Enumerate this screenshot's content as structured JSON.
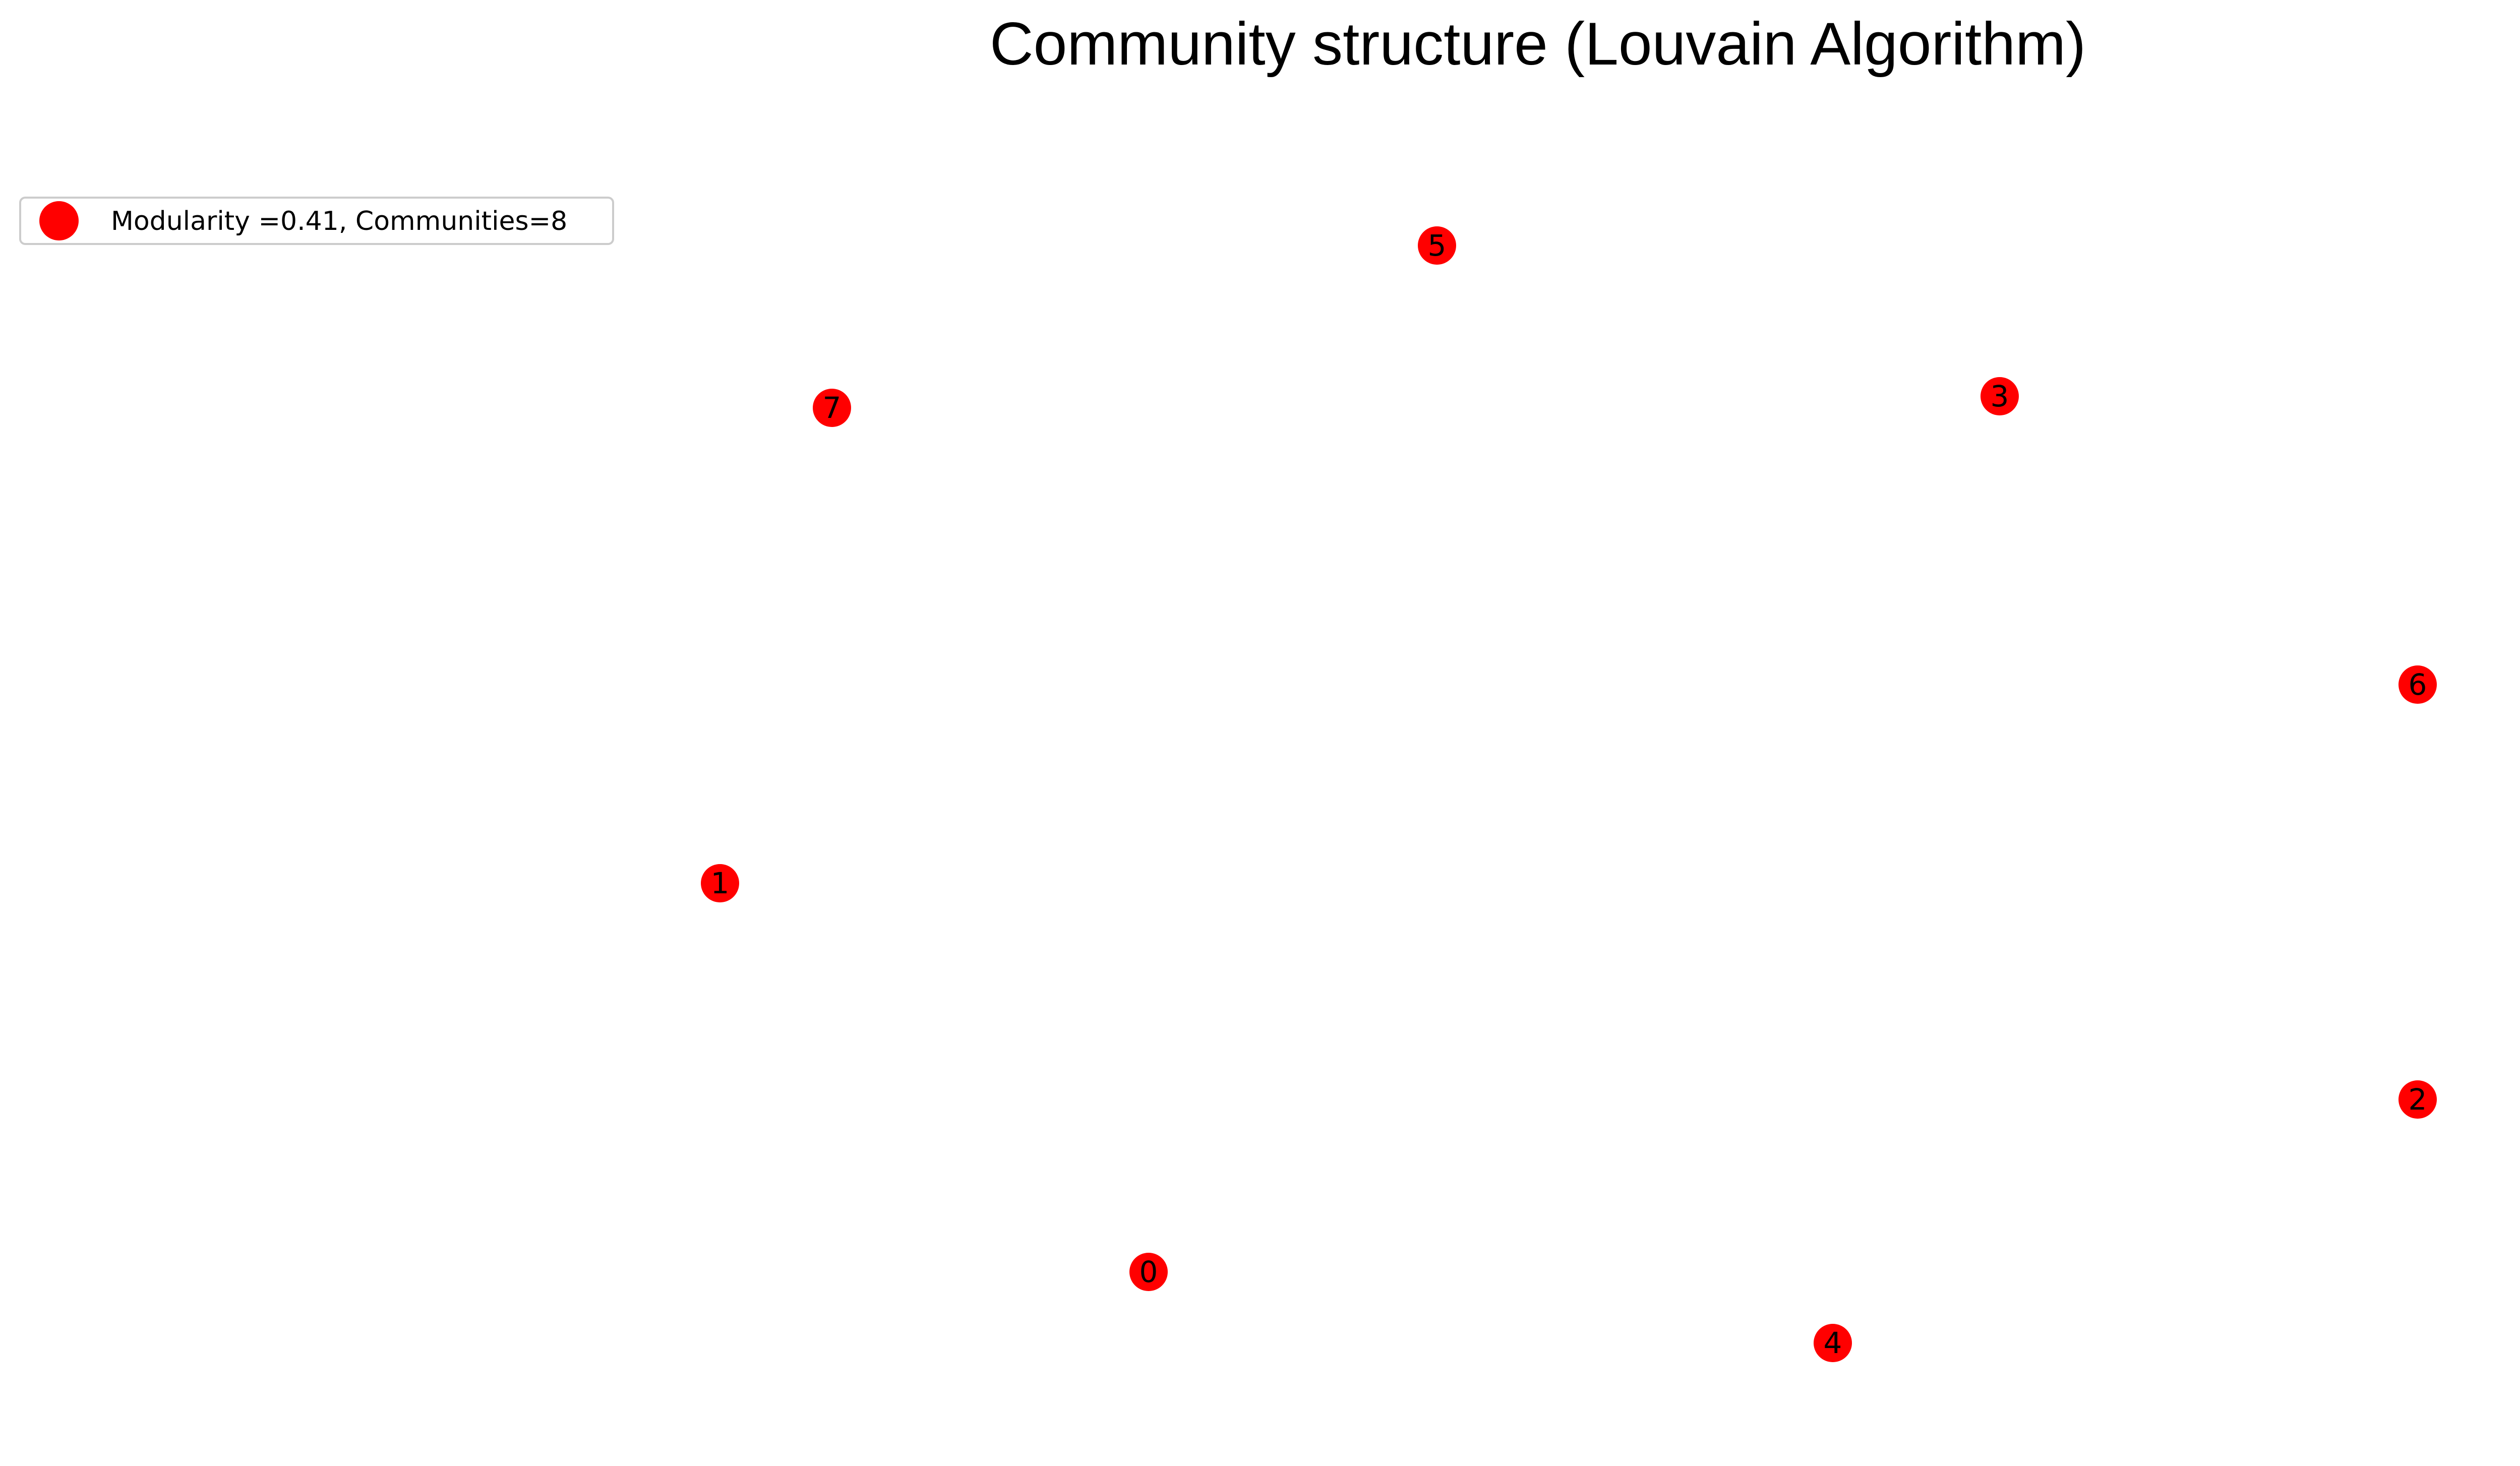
{
  "title": "Community structure (Louvain Algorithm)",
  "legend": {
    "label": "Modularity =0.41, Communities=8",
    "marker_color": "#ff0000"
  },
  "node_color": "#ff0000",
  "nodes": [
    {
      "id": "0",
      "label": "0"
    },
    {
      "id": "1",
      "label": "1"
    },
    {
      "id": "2",
      "label": "2"
    },
    {
      "id": "3",
      "label": "3"
    },
    {
      "id": "4",
      "label": "4"
    },
    {
      "id": "5",
      "label": "5"
    },
    {
      "id": "6",
      "label": "6"
    },
    {
      "id": "7",
      "label": "7"
    }
  ]
}
